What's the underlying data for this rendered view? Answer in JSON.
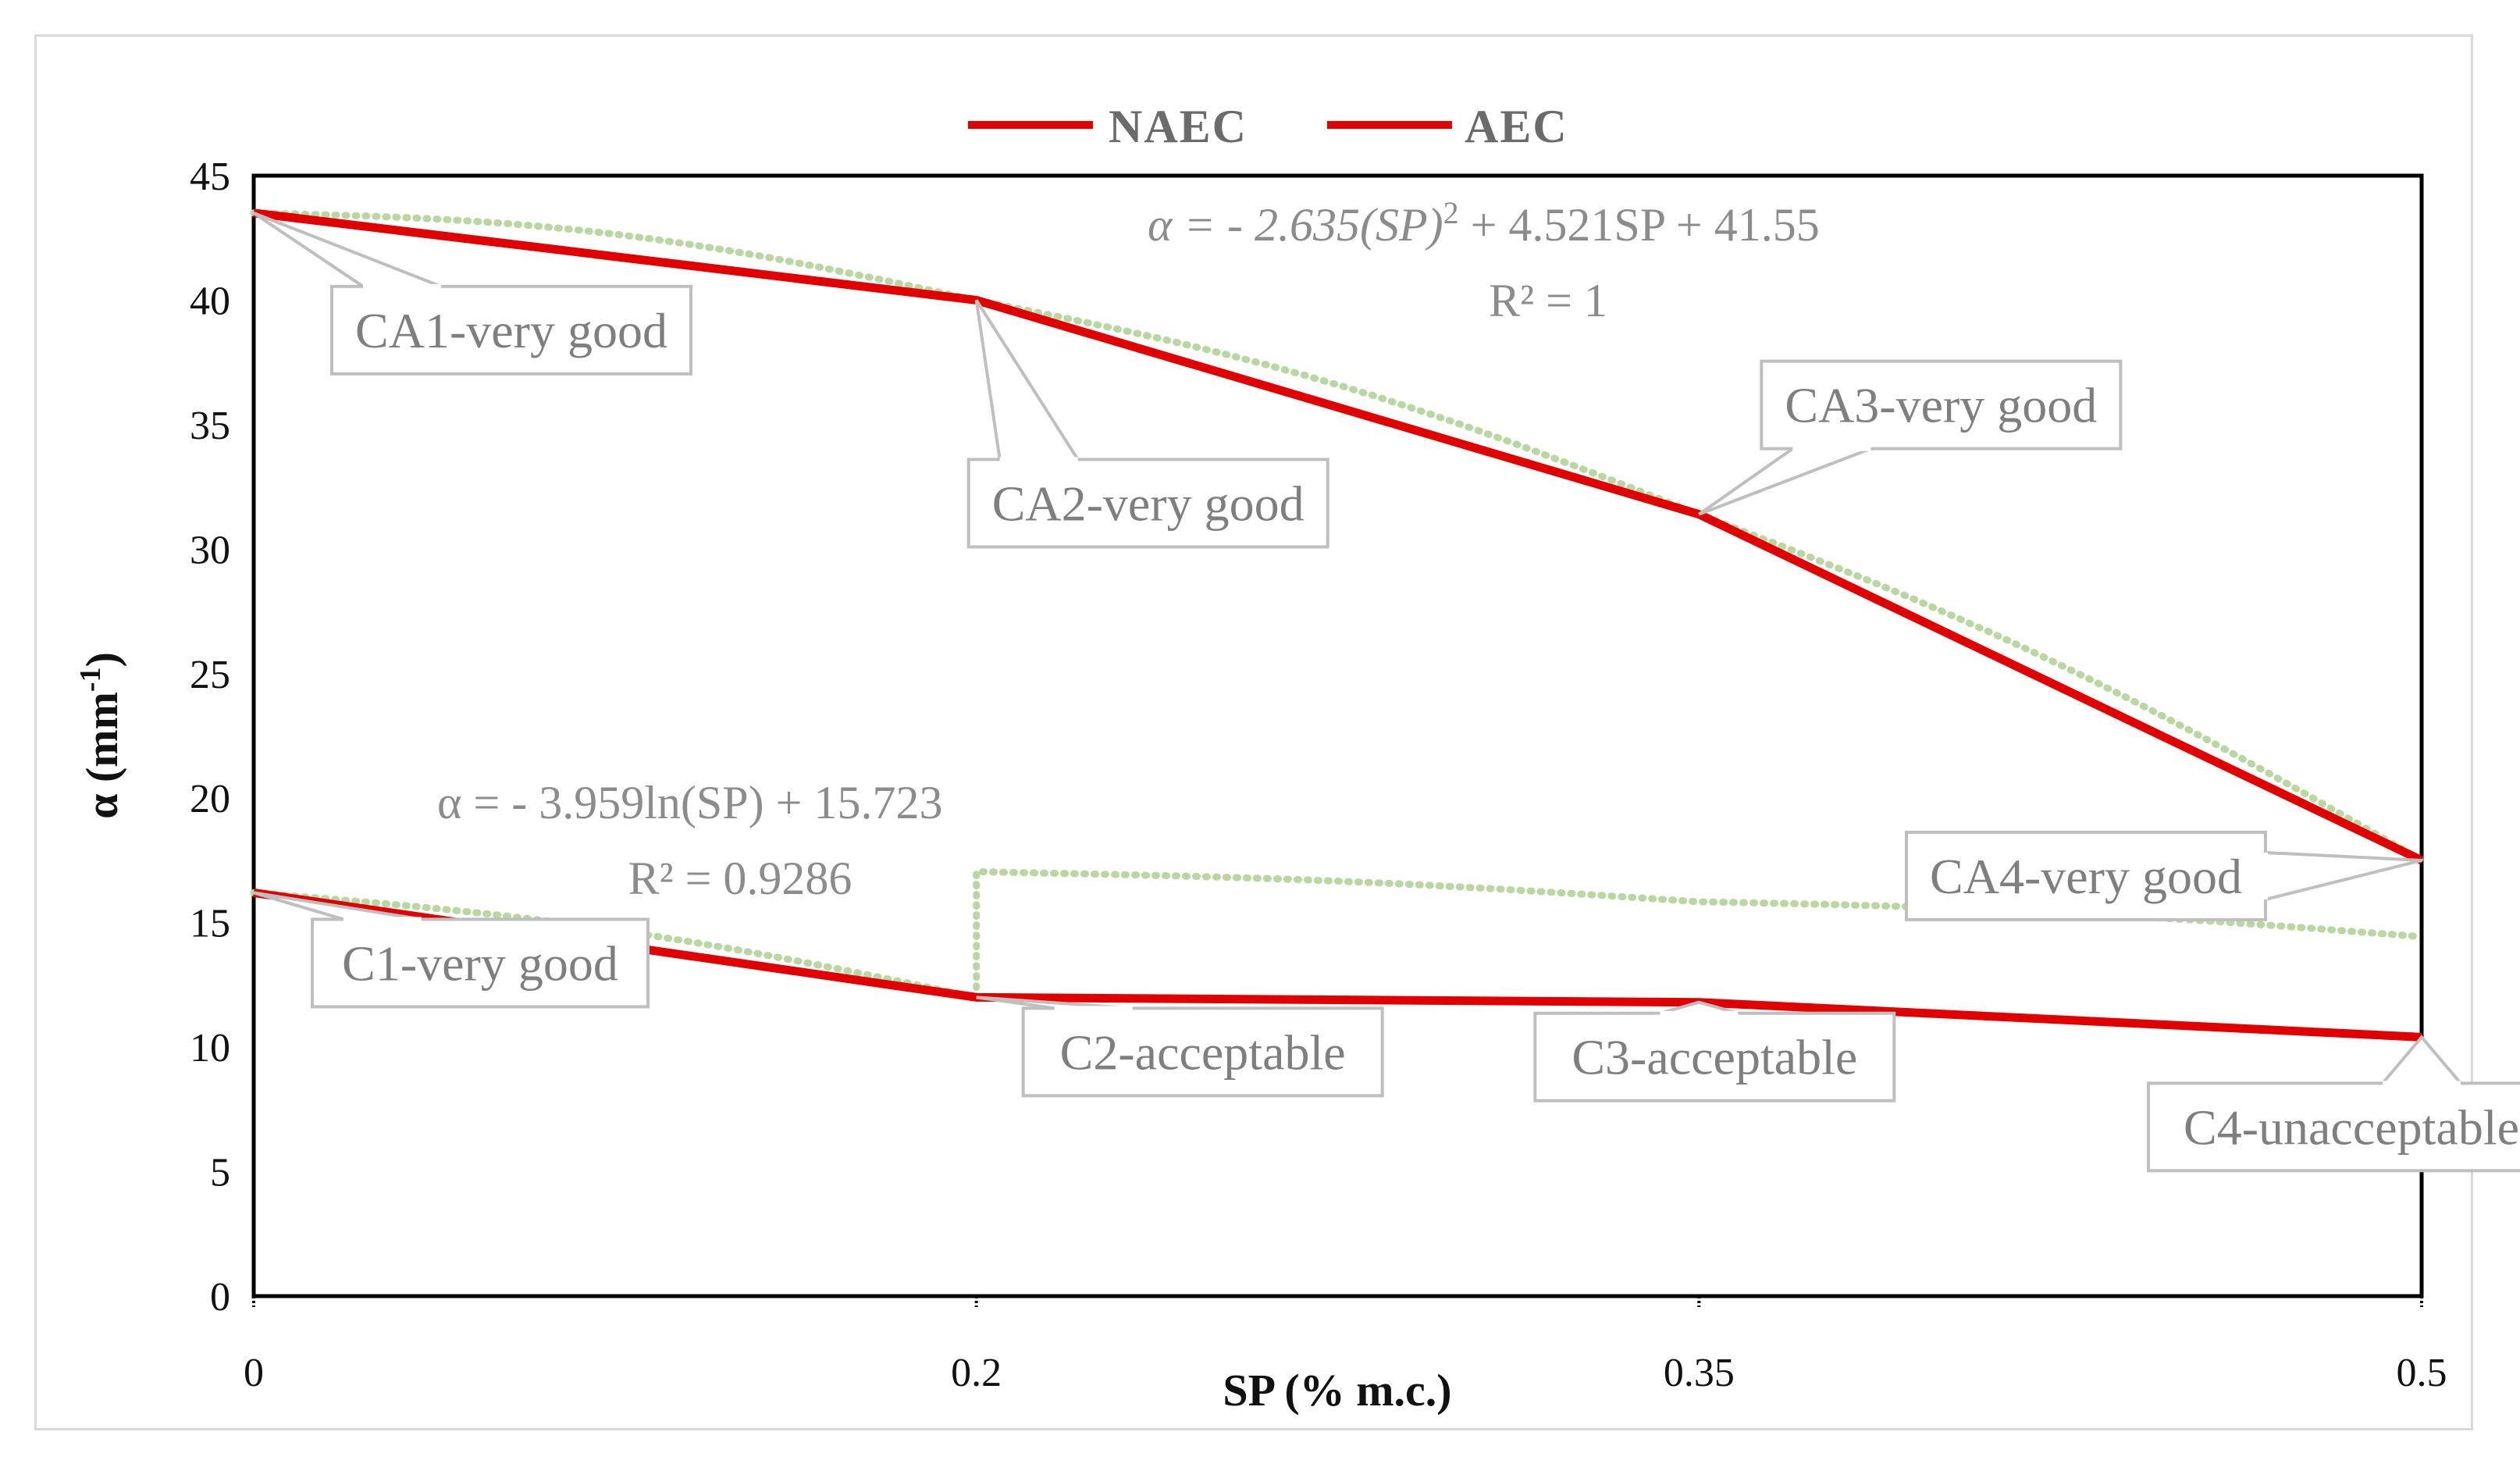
{
  "chart_data": {
    "type": "line",
    "x": [
      0,
      0.2,
      0.35,
      0.5
    ],
    "x_tick_labels": [
      "0",
      "0.2",
      "0.35",
      "0.5"
    ],
    "xlabel": "SP (% m.c.)",
    "ylabel_main": "α (mm",
    "ylabel_sup": "-1",
    "ylabel_close": ")",
    "ylim": [
      0,
      45
    ],
    "y_ticks": [
      "0",
      "5",
      "10",
      "15",
      "20",
      "25",
      "30",
      "35",
      "40",
      "45"
    ],
    "legend_position": "top-center",
    "grid": false,
    "series": [
      {
        "name": "NAEC",
        "color": "#e00000",
        "values": [
          16.2,
          12.0,
          11.8,
          10.4
        ],
        "labels": [
          "C1-very good",
          "C2-acceptable",
          "C3-acceptable",
          "C4-unacceptable"
        ]
      },
      {
        "name": "AEC",
        "color": "#e00000",
        "values": [
          43.5,
          40.0,
          31.4,
          17.5
        ],
        "labels": [
          "CA1-very good",
          "CA2-very good",
          "CA3-very good",
          "CA4-very good"
        ]
      }
    ],
    "trendlines": [
      {
        "series": "AEC",
        "color": "#b9d7a0",
        "type": "polynomial",
        "equation_prefix": "α = - 2.635(SP)",
        "equation_sup": "2",
        "equation_suffix": " + 4.521SP + 41.55",
        "r2": "R² = 1"
      },
      {
        "series": "NAEC",
        "color": "#b9d7a0",
        "type": "logarithmic",
        "equation": "α = - 3.959ln(SP) + 15.723",
        "r2": "R² = 0.9286"
      }
    ]
  }
}
